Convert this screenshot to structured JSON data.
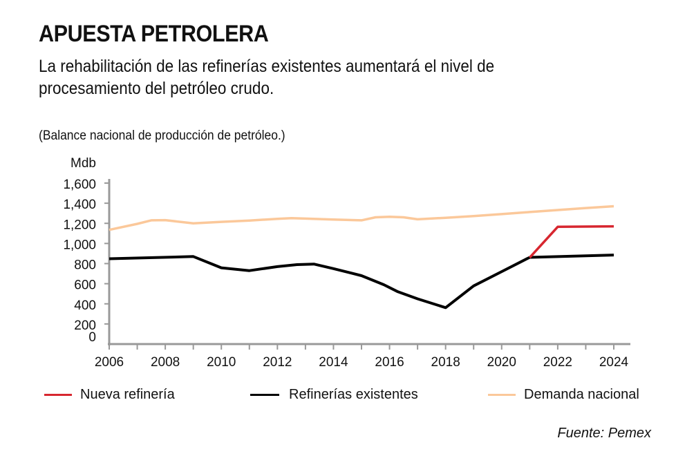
{
  "header": {
    "title": "APUESTA PETROLERA",
    "subtitle": "La rehabilitación de las refinerías existentes aumentará el nivel de procesamiento del petróleo crudo.",
    "note": "(Balance nacional de producción de petróleo.)"
  },
  "source": "Fuente: Pemex",
  "chart_data": {
    "type": "line",
    "title": "",
    "ylabel": "Mdb",
    "xlabel": "",
    "xlim": [
      2006,
      2024
    ],
    "ylim": [
      0,
      1600
    ],
    "x_ticks": [
      "2006",
      "2008",
      "2010",
      "2012",
      "2014",
      "2016",
      "2018",
      "2020",
      "2022",
      "2024"
    ],
    "y_ticks": [
      "0",
      "200",
      "400",
      "600",
      "800",
      "1,000",
      "1,200",
      "1,400",
      "1,600"
    ],
    "grid": false,
    "legend": "bottom",
    "series": [
      {
        "name": "Nueva refinería",
        "color": "#d7262f",
        "x": [
          2021,
          2022,
          2024
        ],
        "values": [
          860,
          1165,
          1170
        ]
      },
      {
        "name": "Refinerías existentes",
        "color": "#000000",
        "x": [
          2006,
          2009,
          2010,
          2011,
          2012,
          2012.7,
          2013.3,
          2014,
          2015,
          2015.8,
          2016.3,
          2017,
          2018,
          2019,
          2020,
          2021,
          2024
        ],
        "values": [
          848,
          870,
          758,
          730,
          770,
          790,
          795,
          750,
          680,
          590,
          520,
          450,
          362,
          578,
          720,
          862,
          885
        ]
      },
      {
        "name": "Demanda nacional",
        "color": "#fbc89a",
        "x": [
          2006,
          2007,
          2007.5,
          2008,
          2009,
          2010,
          2011,
          2012,
          2012.5,
          2013,
          2014,
          2015,
          2015.5,
          2016,
          2016.5,
          2017,
          2018,
          2019,
          2020,
          2021,
          2022,
          2023,
          2024
        ],
        "values": [
          1135,
          1195,
          1230,
          1232,
          1200,
          1215,
          1228,
          1245,
          1252,
          1247,
          1238,
          1230,
          1260,
          1265,
          1260,
          1240,
          1255,
          1272,
          1292,
          1312,
          1332,
          1352,
          1370
        ]
      }
    ]
  }
}
